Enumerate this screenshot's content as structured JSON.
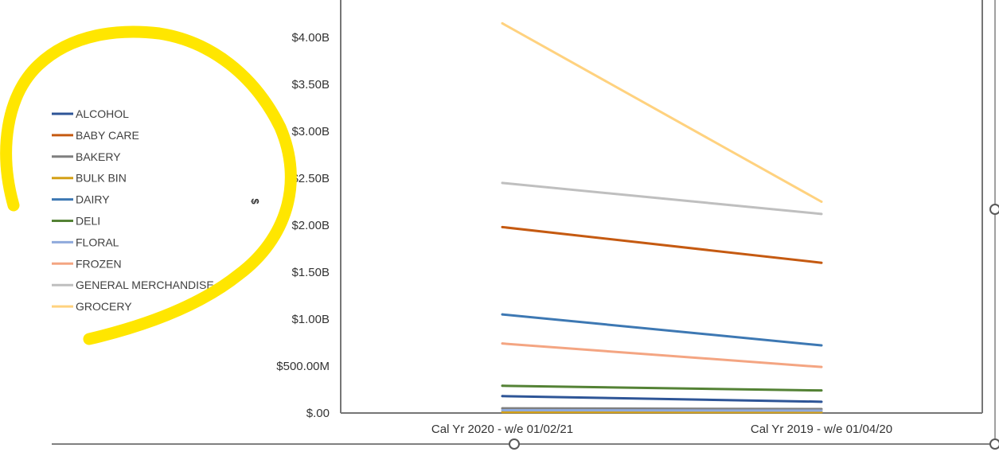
{
  "chart_data": {
    "type": "line",
    "ylabel": "$",
    "ylim": [
      0,
      4000000000
    ],
    "y_ticks": [
      {
        "value": 0,
        "label": "$.00"
      },
      {
        "value": 500000000,
        "label": "$500.00M"
      },
      {
        "value": 1000000000,
        "label": "$1.00B"
      },
      {
        "value": 1500000000,
        "label": "$1.50B"
      },
      {
        "value": 2000000000,
        "label": "$2.00B"
      },
      {
        "value": 2500000000,
        "label": "$2.50B"
      },
      {
        "value": 3000000000,
        "label": "$3.00B"
      },
      {
        "value": 3500000000,
        "label": "$3.50B"
      },
      {
        "value": 4000000000,
        "label": "$4.00B"
      }
    ],
    "categories": [
      "Cal Yr 2020 - w/e 01/02/21",
      "Cal Yr 2019 - w/e 01/04/20"
    ],
    "legend_position": "left",
    "grid": false,
    "series": [
      {
        "name": "ALCOHOL",
        "color": "#2e5597",
        "values": [
          180000000,
          120000000
        ]
      },
      {
        "name": "BABY CARE",
        "color": "#c55a11",
        "values": [
          1980000000,
          1600000000
        ]
      },
      {
        "name": "BAKERY",
        "color": "#7f7f7f",
        "values": [
          50000000,
          42000000
        ]
      },
      {
        "name": "BULK BIN",
        "color": "#d4a017",
        "values": [
          10000000,
          8000000
        ]
      },
      {
        "name": "DAIRY",
        "color": "#3d78b3",
        "values": [
          1050000000,
          720000000
        ]
      },
      {
        "name": "DELI",
        "color": "#548235",
        "values": [
          290000000,
          240000000
        ]
      },
      {
        "name": "FLORAL",
        "color": "#8faadc",
        "values": [
          30000000,
          25000000
        ]
      },
      {
        "name": "FROZEN",
        "color": "#f4a582",
        "values": [
          740000000,
          490000000
        ]
      },
      {
        "name": "GENERAL MERCHANDISE",
        "color": "#bfbfbf",
        "values": [
          2450000000,
          2120000000
        ]
      },
      {
        "name": "GROCERY",
        "color": "#ffd27f",
        "values": [
          4150000000,
          2250000000
        ]
      }
    ]
  },
  "annotation": {
    "color": "#ffe600"
  }
}
